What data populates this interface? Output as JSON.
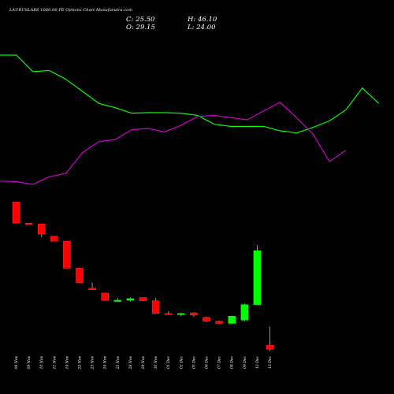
{
  "header": {
    "title": "LAURUSLABS 1060.00 PE Options Chart Munafasutra.com",
    "open": "O: 29.15",
    "high": "H: 46.10",
    "low": "L: 24.00",
    "close": "C: 25.50"
  },
  "colors": {
    "background": "#000000",
    "up": "#00ff00",
    "down": "#ff0000",
    "line_green": "#00ff00",
    "line_magenta": "#cc00cc",
    "wick": "#999999"
  },
  "chart_data": [
    {
      "type": "candlestick",
      "title": "",
      "categories": [
        "08 Nov",
        "09 Nov",
        "10 Nov",
        "11 Nov",
        "14 Nov",
        "22 Nov",
        "23 Nov",
        "24 Nov",
        "25 Nov",
        "28 Nov",
        "29 Nov",
        "30 Nov",
        "01 Dec",
        "02 Dec",
        "05 Dec",
        "06 Dec",
        "07 Dec",
        "08 Dec",
        "09 Dec",
        "12 Dec",
        "13 Dec"
      ],
      "series": [
        {
          "open": [
            159.0,
            139.9,
            139.2,
            128.0,
            123.5,
            99.0,
            81.0,
            76.5,
            69.8,
            70.0,
            72.5,
            69.5,
            58.0,
            57.0,
            58.5,
            54.5,
            51.0,
            49.0,
            52.0,
            66.0,
            29.15
          ],
          "high": [
            159.0,
            139.9,
            139.2,
            128.0,
            123.5,
            99.0,
            86.0,
            76.5,
            72.0,
            72.5,
            72.5,
            72.0,
            60.0,
            58.5,
            59.0,
            55.0,
            51.5,
            56.0,
            67.0,
            120.0,
            46.1
          ],
          "low": [
            139.9,
            139.2,
            127.0,
            123.5,
            99.0,
            86.0,
            79.5,
            69.5,
            68.8,
            69.0,
            69.5,
            57.5,
            56.5,
            55.5,
            55.0,
            50.0,
            48.5,
            48.0,
            51.0,
            66.0,
            24.0
          ],
          "close": [
            139.9,
            139.2,
            130.0,
            123.5,
            99.0,
            86.0,
            79.5,
            69.8,
            70.0,
            71.5,
            69.5,
            58.0,
            57.0,
            58.0,
            56.5,
            51.0,
            49.0,
            55.5,
            66.0,
            115.0,
            25.5
          ]
        }
      ]
    },
    {
      "type": "line",
      "title": "",
      "series": [
        {
          "color": "#00ff00",
          "values": [
            72,
            72,
            57,
            58,
            50,
            39,
            28,
            24,
            19,
            19.5,
            19.5,
            19,
            17,
            9,
            7,
            7,
            7,
            3,
            1,
            6,
            12,
            22,
            42,
            28
          ]
        },
        {
          "color": "#cc00cc",
          "values": [
            -43,
            -43.5,
            -46,
            -39,
            -36,
            -17,
            -7,
            -5,
            4,
            5,
            2,
            8,
            16,
            17,
            15,
            13,
            21,
            29,
            15,
            0,
            -25,
            -15
          ]
        }
      ]
    }
  ]
}
